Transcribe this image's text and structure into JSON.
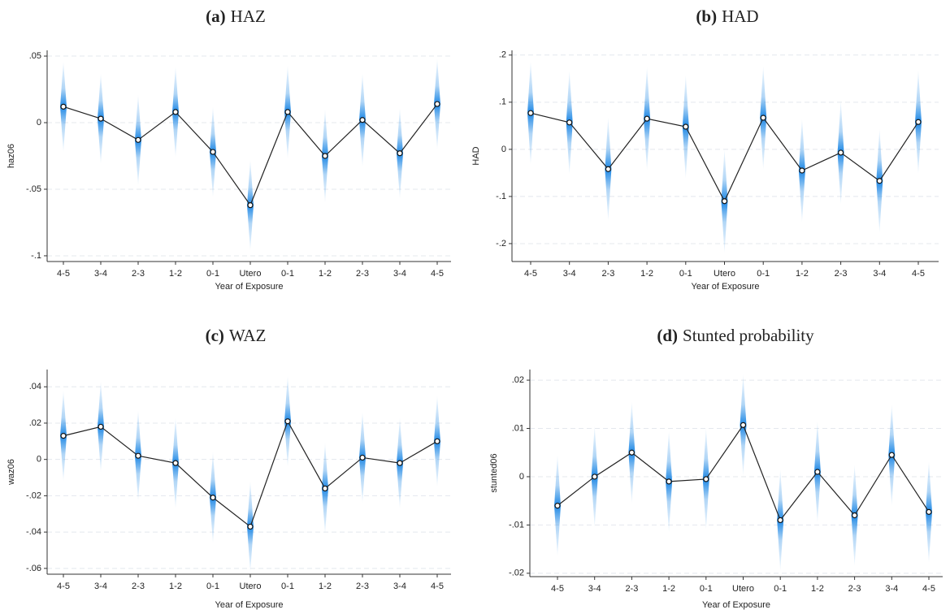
{
  "chart_data": [
    {
      "type": "line",
      "panel": "(a)",
      "title": "HAZ",
      "ylabel": "haz06",
      "xlabel": "Year of Exposure",
      "categories": [
        "4-5",
        "3-4",
        "2-3",
        "1-2",
        "0-1",
        "Utero",
        "0-1",
        "1-2",
        "2-3",
        "3-4",
        "4-5"
      ],
      "values": [
        0.012,
        0.003,
        -0.013,
        0.008,
        -0.022,
        -0.062,
        0.008,
        -0.025,
        0.002,
        -0.023,
        0.014
      ],
      "ci_lower": [
        -0.022,
        -0.031,
        -0.047,
        -0.026,
        -0.056,
        -0.096,
        -0.027,
        -0.06,
        -0.033,
        -0.057,
        -0.02
      ],
      "ci_upper": [
        0.046,
        0.037,
        0.021,
        0.042,
        0.012,
        -0.028,
        0.043,
        0.01,
        0.037,
        0.011,
        0.048
      ],
      "color": "#1e88e5",
      "ylim": [
        -0.1043,
        0.0543
      ],
      "yticks": [
        {
          "value": -0.1,
          "label": "-.1"
        },
        {
          "value": -0.05,
          "label": "-.05"
        },
        0,
        {
          "value": 0.05,
          "label": ".05"
        }
      ],
      "grid": true
    },
    {
      "type": "line",
      "panel": "(b)",
      "title": "HAD",
      "ylabel": "HAD",
      "xlabel": "Year of Exposure",
      "categories": [
        "4-5",
        "3-4",
        "2-3",
        "1-2",
        "0-1",
        "Utero",
        "0-1",
        "1-2",
        "2-3",
        "3-4",
        "4-5"
      ],
      "values": [
        0.077,
        0.057,
        -0.042,
        0.065,
        0.048,
        -0.11,
        0.067,
        -0.045,
        -0.007,
        -0.067,
        0.058
      ],
      "ci_lower": [
        -0.033,
        -0.053,
        -0.152,
        -0.045,
        -0.062,
        -0.22,
        -0.043,
        -0.155,
        -0.117,
        -0.177,
        -0.052
      ],
      "ci_upper": [
        0.187,
        0.167,
        0.068,
        0.175,
        0.158,
        0.0,
        0.177,
        0.065,
        0.103,
        0.043,
        0.168
      ],
      "color": "#1e88e5",
      "ylim": [
        -0.238,
        0.21
      ],
      "yticks": [
        {
          "value": -0.2,
          "label": "-.2"
        },
        {
          "value": -0.1,
          "label": "-.1"
        },
        0,
        {
          "value": 0.1,
          "label": ".1"
        },
        {
          "value": 0.2,
          "label": ".2"
        }
      ],
      "grid": true
    },
    {
      "type": "line",
      "panel": "(c)",
      "title": "WAZ",
      "ylabel": "waz06",
      "xlabel": "Year of Exposure",
      "categories": [
        "4-5",
        "3-4",
        "2-3",
        "1-2",
        "0-1",
        "Utero",
        "0-1",
        "1-2",
        "2-3",
        "3-4",
        "4-5"
      ],
      "values": [
        0.013,
        0.018,
        0.002,
        -0.002,
        -0.021,
        -0.037,
        0.021,
        -0.016,
        0.001,
        -0.002,
        0.01
      ],
      "ci_lower": [
        -0.012,
        -0.007,
        -0.023,
        -0.027,
        -0.046,
        -0.062,
        -0.004,
        -0.041,
        -0.024,
        -0.027,
        -0.015
      ],
      "ci_upper": [
        0.038,
        0.043,
        0.027,
        0.023,
        0.004,
        -0.012,
        0.046,
        0.009,
        0.026,
        0.023,
        0.035
      ],
      "color": "#1e88e5",
      "ylim": [
        -0.0632,
        0.0495
      ],
      "yticks": [
        {
          "value": -0.06,
          "label": "-.06"
        },
        {
          "value": -0.04,
          "label": "-.04"
        },
        {
          "value": -0.02,
          "label": "-.02"
        },
        0,
        {
          "value": 0.02,
          "label": ".02"
        },
        {
          "value": 0.04,
          "label": ".04"
        }
      ],
      "grid": true
    },
    {
      "type": "line",
      "panel": "(d)",
      "title": "Stunted probability",
      "ylabel": "stunted06",
      "xlabel": "Year of Exposure",
      "categories": [
        "4-5",
        "3-4",
        "2-3",
        "1-2",
        "0-1",
        "Utero",
        "0-1",
        "1-2",
        "2-3",
        "3-4",
        "4-5"
      ],
      "values": [
        -0.006,
        0.0,
        0.005,
        -0.001,
        -0.0005,
        0.0107,
        -0.009,
        0.001,
        -0.008,
        0.0045,
        -0.0073
      ],
      "ci_lower": [
        -0.0165,
        -0.0105,
        -0.0055,
        -0.0115,
        -0.011,
        0.0002,
        -0.0195,
        -0.0095,
        -0.0185,
        -0.006,
        -0.0178
      ],
      "ci_upper": [
        0.0045,
        0.0105,
        0.0155,
        0.0095,
        0.01,
        0.0212,
        0.0015,
        0.0115,
        0.0025,
        0.015,
        0.0032
      ],
      "color": "#1e88e5",
      "ylim": [
        -0.0207,
        0.0222
      ],
      "yticks": [
        {
          "value": -0.02,
          "label": "-.02"
        },
        {
          "value": -0.01,
          "label": "-.01"
        },
        0,
        {
          "value": 0.01,
          "label": ".01"
        },
        {
          "value": 0.02,
          "label": ".02"
        }
      ],
      "grid": true
    }
  ]
}
